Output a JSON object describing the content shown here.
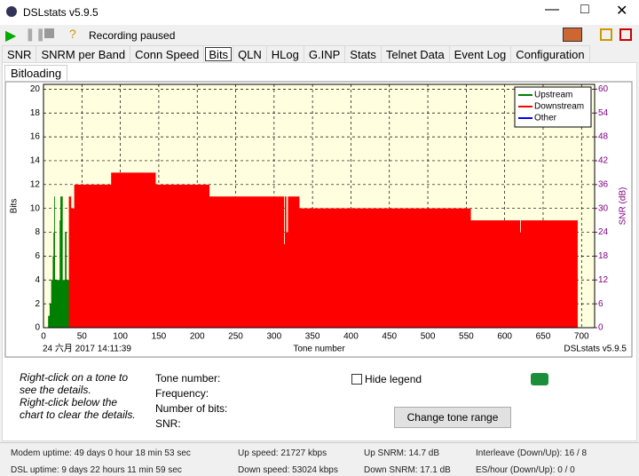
{
  "window": {
    "title": "DSLstats v5.9.5",
    "status": "Recording paused"
  },
  "tabs": [
    "SNR",
    "SNRM per Band",
    "Conn Speed",
    "Bits",
    "QLN",
    "HLog",
    "G.INP",
    "Stats",
    "Telnet Data",
    "Event Log",
    "Configuration"
  ],
  "active_tab": 3,
  "subtab": "Bitloading",
  "chart_data": {
    "type": "step-area",
    "x_label": "Tone number",
    "y_label": "Bits",
    "y2_label": "SNR (dB)",
    "timestamp": "24 六月 2017 14:11:39",
    "watermark": "DSLstats v5.9.5",
    "xlim": [
      0,
      717
    ],
    "xticks": [
      0,
      50,
      100,
      150,
      200,
      250,
      300,
      350,
      400,
      450,
      500,
      550,
      600,
      650,
      700
    ],
    "ylim": [
      0,
      20.4
    ],
    "yticks": [
      0,
      2,
      4,
      6,
      8,
      10,
      12,
      14,
      16,
      18,
      20
    ],
    "y2lim": [
      0,
      61.2
    ],
    "y2ticks": [
      0,
      6,
      12,
      18,
      24,
      30,
      36,
      42,
      48,
      54,
      60
    ],
    "grid": true,
    "legend": "top-right",
    "series": [
      {
        "name": "Upstream",
        "color": "#008000",
        "x": [
          6,
          8,
          10,
          12,
          13,
          14,
          15,
          20,
          21,
          22,
          25,
          28,
          30,
          35
        ],
        "values": [
          1,
          2,
          4,
          6,
          8,
          11,
          4,
          4,
          9,
          11,
          4,
          8,
          4,
          4
        ]
      },
      {
        "name": "Downstream",
        "color": "#ff0000",
        "x": [
          33,
          36,
          40,
          88,
          146,
          216,
          313,
          314,
          316,
          318,
          333,
          495,
          556,
          619,
          620,
          621,
          695
        ],
        "values": [
          11,
          10,
          12,
          13,
          12,
          11,
          7,
          11,
          8,
          11,
          10,
          10,
          9,
          9,
          8,
          9,
          9
        ]
      },
      {
        "name": "Other",
        "color": "#0000ff",
        "x": [],
        "values": []
      }
    ]
  },
  "info": {
    "hint1": "Right-click on a tone to see the details.",
    "hint2": "Right-click below the chart to clear the details.",
    "fields": [
      "Tone number:",
      "Frequency:",
      "Number of bits:",
      "SNR:"
    ],
    "hide_legend": "Hide legend",
    "button": "Change tone range"
  },
  "statusbar": [
    [
      "Modem uptime: 49 days 0 hour 18 min 53 sec",
      "DSL uptime: 9 days 22 hours 11 min 59 sec"
    ],
    [
      "Up speed: 21727 kbps",
      "Down speed: 53024 kbps"
    ],
    [
      "Up SNRM: 14.7 dB",
      "Down SNRM: 17.1 dB"
    ],
    [
      "Interleave (Down/Up): 16 / 8",
      "ES/hour (Down/Up): 0 / 0"
    ]
  ]
}
